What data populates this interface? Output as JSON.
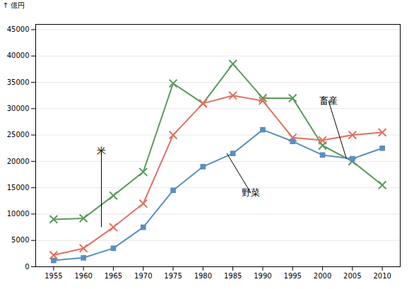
{
  "chart_data": {
    "type": "line",
    "ylabel": "億円",
    "x": [
      1955,
      1960,
      1965,
      1970,
      1975,
      1980,
      1985,
      1990,
      1995,
      2000,
      2005,
      2010
    ],
    "xlim": [
      1952,
      2013
    ],
    "xticks": [
      1955,
      1960,
      1965,
      1970,
      1975,
      1980,
      1985,
      1990,
      1995,
      2000,
      2005,
      2010
    ],
    "ylim": [
      0,
      46000
    ],
    "yticks": [
      0,
      5000,
      10000,
      15000,
      20000,
      25000,
      30000,
      35000,
      40000,
      45000
    ],
    "grid": true,
    "series": [
      {
        "color": "#5a9a5a",
        "marker": "x",
        "values": [
          9000,
          9200,
          13500,
          18000,
          34800,
          31000,
          38500,
          32000,
          32000,
          23000,
          20000,
          15500
        ]
      },
      {
        "color": "#e07060",
        "marker": "x",
        "values": [
          2200,
          3500,
          7500,
          12000,
          25000,
          31000,
          32500,
          31500,
          24500,
          24000,
          25000,
          25500
        ]
      },
      {
        "color": "#5a8fbf",
        "marker": "square",
        "values": [
          1200,
          1700,
          3500,
          7500,
          14500,
          19000,
          21500,
          26000,
          23800,
          21200,
          20500,
          22500
        ]
      }
    ],
    "annotations": [
      {
        "text": "米",
        "x": 1963,
        "y": 7500,
        "text_x": 1963,
        "text_y": 22000
      },
      {
        "text": "野菜",
        "x": 1984,
        "y": 21500,
        "text_x": 1988,
        "text_y": 14000
      },
      {
        "text": "畜産",
        "x": 2004,
        "y": 20500,
        "text_x": 2001,
        "text_y": 31500
      }
    ]
  }
}
